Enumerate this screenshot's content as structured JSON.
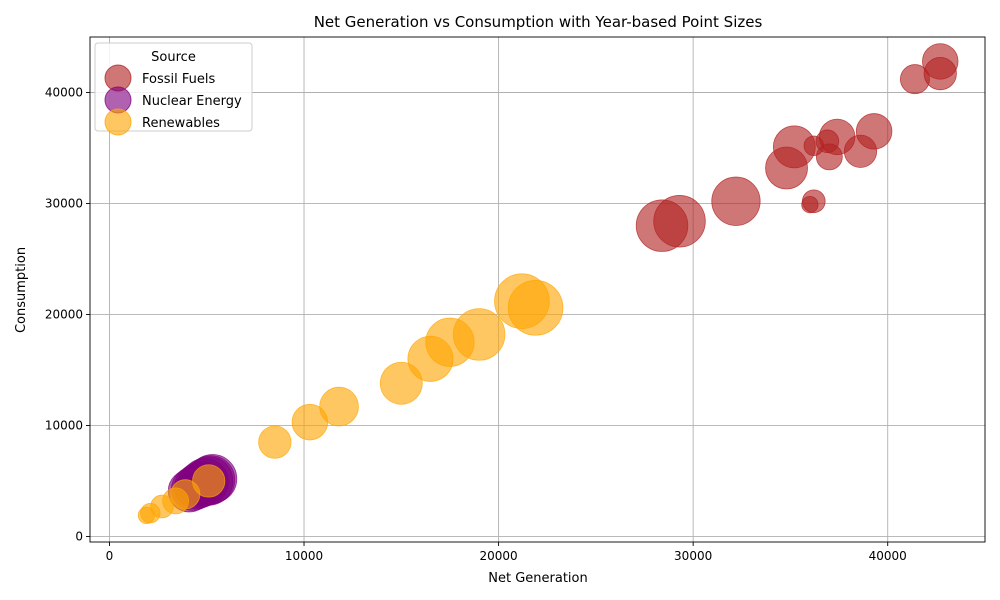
{
  "chart_data": {
    "type": "scatter",
    "title": "Net Generation vs Consumption with Year-based Point Sizes",
    "xlabel": "Net Generation",
    "ylabel": "Consumption",
    "xlim": [
      -1000,
      45000
    ],
    "ylim": [
      -500,
      45000
    ],
    "xticks": [
      0,
      10000,
      20000,
      30000,
      40000
    ],
    "yticks": [
      0,
      10000,
      20000,
      30000,
      40000
    ],
    "grid": true,
    "legend": {
      "title": "Source",
      "placement": "top-left"
    },
    "series": [
      {
        "name": "Fossil Fuels",
        "color": "#b22222",
        "points": [
          {
            "x": 36000,
            "y": 29900,
            "size": 1
          },
          {
            "x": 36200,
            "y": 30200,
            "size": 2
          },
          {
            "x": 36200,
            "y": 35200,
            "size": 1.5
          },
          {
            "x": 36900,
            "y": 35600,
            "size": 2
          },
          {
            "x": 37000,
            "y": 34200,
            "size": 2.5
          },
          {
            "x": 37400,
            "y": 36000,
            "size": 4
          },
          {
            "x": 38600,
            "y": 34700,
            "size": 3.5
          },
          {
            "x": 39300,
            "y": 36500,
            "size": 4
          },
          {
            "x": 41400,
            "y": 41200,
            "size": 3
          },
          {
            "x": 42700,
            "y": 41700,
            "size": 3.5
          },
          {
            "x": 42700,
            "y": 42800,
            "size": 4
          },
          {
            "x": 34800,
            "y": 33200,
            "size": 5
          },
          {
            "x": 35200,
            "y": 35100,
            "size": 5
          },
          {
            "x": 32200,
            "y": 30200,
            "size": 6
          },
          {
            "x": 29300,
            "y": 28400,
            "size": 6.5
          },
          {
            "x": 28400,
            "y": 28000,
            "size": 6.5
          }
        ]
      },
      {
        "name": "Nuclear Energy",
        "color": "#800080",
        "points": [
          {
            "x": 4100,
            "y": 4100,
            "size": 5
          },
          {
            "x": 4300,
            "y": 4300,
            "size": 5.2
          },
          {
            "x": 4500,
            "y": 4500,
            "size": 5.4
          },
          {
            "x": 4700,
            "y": 4700,
            "size": 5.6
          },
          {
            "x": 4900,
            "y": 4900,
            "size": 5.8
          },
          {
            "x": 5100,
            "y": 5000,
            "size": 6
          },
          {
            "x": 5200,
            "y": 5100,
            "size": 6
          },
          {
            "x": 5300,
            "y": 5200,
            "size": 6
          }
        ]
      },
      {
        "name": "Renewables",
        "color": "#ffa500",
        "points": [
          {
            "x": 1900,
            "y": 1900,
            "size": 1
          },
          {
            "x": 2100,
            "y": 2100,
            "size": 1.5
          },
          {
            "x": 2700,
            "y": 2700,
            "size": 2
          },
          {
            "x": 3400,
            "y": 3200,
            "size": 2.5
          },
          {
            "x": 3900,
            "y": 3800,
            "size": 3
          },
          {
            "x": 5100,
            "y": 5000,
            "size": 3.5
          },
          {
            "x": 8500,
            "y": 8500,
            "size": 3.5
          },
          {
            "x": 10300,
            "y": 10300,
            "size": 4
          },
          {
            "x": 11800,
            "y": 11700,
            "size": 4.5
          },
          {
            "x": 15000,
            "y": 13800,
            "size": 5
          },
          {
            "x": 16500,
            "y": 16000,
            "size": 5.5
          },
          {
            "x": 17500,
            "y": 17500,
            "size": 6
          },
          {
            "x": 19000,
            "y": 18200,
            "size": 6.5
          },
          {
            "x": 21200,
            "y": 21200,
            "size": 7
          },
          {
            "x": 21900,
            "y": 20600,
            "size": 7
          }
        ]
      }
    ]
  }
}
